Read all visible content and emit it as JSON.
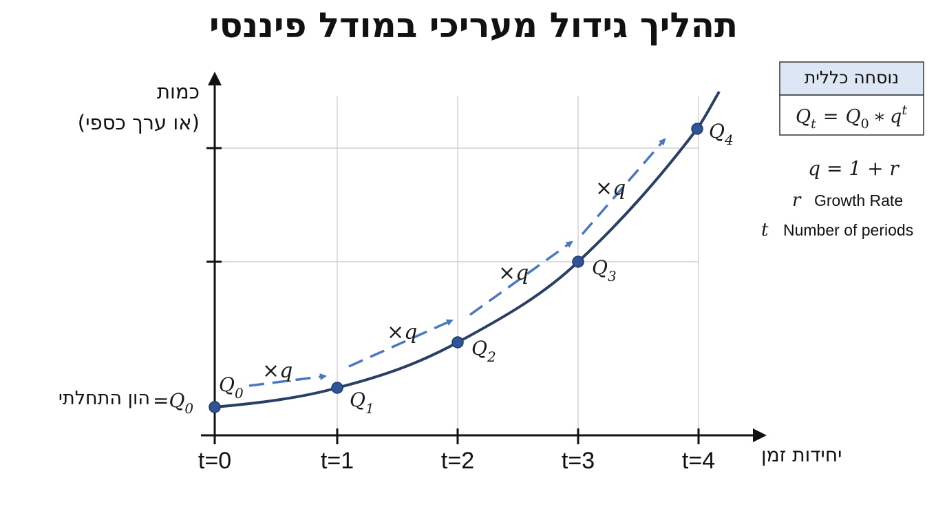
{
  "title": "תהליך גידול מעריכי במודל פיננסי",
  "y_axis_label": [
    "כמות",
    "(או ערך כספי)"
  ],
  "x_axis_label": "יחידות זמן",
  "x_ticks": [
    "t=0",
    "t=1",
    "t=2",
    "t=3",
    "t=4"
  ],
  "points": [
    {
      "symbol": "Q",
      "subscript": "0"
    },
    {
      "symbol": "Q",
      "subscript": "1"
    },
    {
      "symbol": "Q",
      "subscript": "2"
    },
    {
      "symbol": "Q",
      "subscript": "3"
    },
    {
      "symbol": "Q",
      "subscript": "4"
    }
  ],
  "initial_value": {
    "text": "הון התחלתי",
    "symbol": "=Q",
    "subscript": "0"
  },
  "step_labels": [
    "×q",
    "×q",
    "×q",
    "×q"
  ],
  "formula_box": {
    "header": "נוסחה כללית",
    "formula": [
      {
        "text": "Q",
        "sub": "t"
      },
      {
        "text": "="
      },
      {
        "text": "Q",
        "sub": "0"
      },
      {
        "text": "∗"
      },
      {
        "text": "q",
        "sup": "t"
      }
    ]
  },
  "q_definition": "q = 1 + r",
  "variables": [
    {
      "symbol": "r",
      "description": "Growth Rate"
    },
    {
      "symbol": "t",
      "description": "Number of periods"
    }
  ]
}
